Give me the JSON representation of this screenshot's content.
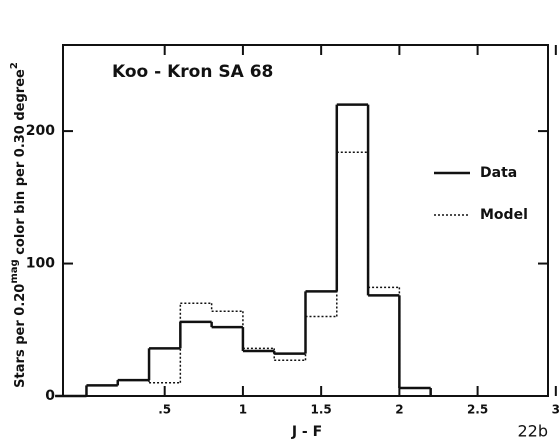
{
  "chart_data": {
    "type": "step-histogram",
    "annotation": "Koo - Kron  SA 68",
    "corner_label": "22b",
    "x_label": "J - F",
    "y_label": [
      "Stars per 0.20",
      "mag",
      " color bin per 0.30 degree",
      "2"
    ],
    "bins": [
      -0.2,
      0,
      0.2,
      0.4,
      0.6,
      0.8,
      1.0,
      1.2,
      1.4,
      1.6,
      1.8,
      2.0,
      2.2
    ],
    "series": [
      {
        "name": "Data",
        "color": "#111111",
        "style": "solid",
        "values": [
          0,
          8,
          12,
          36,
          56,
          52,
          34,
          32,
          79,
          220,
          76,
          6
        ]
      },
      {
        "name": "Model",
        "color": "#111111",
        "style": "dotted",
        "values": [
          0,
          8,
          12,
          10,
          70,
          64,
          36,
          27,
          60,
          184,
          82,
          6
        ]
      }
    ],
    "xlim": [
      -0.15,
      2.95
    ],
    "xticks": [
      {
        "value": 0.5,
        "label": ".5"
      },
      1,
      1.5,
      2,
      2.5,
      3
    ],
    "ylim": [
      0,
      265
    ],
    "yticks": [
      0,
      100,
      200
    ]
  }
}
